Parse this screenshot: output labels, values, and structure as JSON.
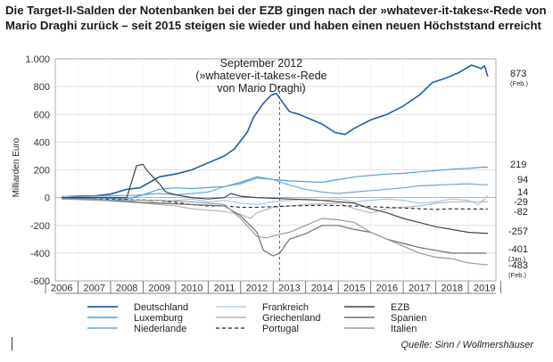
{
  "title": "Die Target-II-Salden der Notenbanken bei der EZB gingen nach der »whatever-it-takes«-Rede von Mario Draghi zurück – seit 2015 steigen sie wieder und haben einen neuen Höchststand erreicht",
  "source": "Quelle: Sinn / Wollmershäuser",
  "chart_data": {
    "type": "line",
    "ylabel": "Milliarden Euro",
    "ylim": [
      -600,
      1000
    ],
    "yticks": [
      -600,
      -400,
      -200,
      0,
      200,
      400,
      600,
      800,
      1000
    ],
    "ytick_labels": [
      "-600",
      "-400",
      "-200",
      "0",
      "200",
      "400",
      "600",
      "800",
      "1.000"
    ],
    "xlim": [
      2005.8,
      2019.35
    ],
    "year_labels": [
      "2006",
      "2007",
      "2008",
      "2009",
      "2010",
      "2011",
      "2012",
      "2013",
      "2014",
      "2015",
      "2016",
      "2017",
      "2018",
      "2019"
    ],
    "grid": true,
    "annotation": {
      "lines": [
        "September 2012",
        "(»whatever-it-takes«-Rede",
        "von Mario Draghi)"
      ],
      "x": 2012.7
    },
    "series": [
      {
        "name": "Deutschland",
        "color": "#1f5fa8",
        "width": 1.6,
        "dash": "",
        "end_label": "873",
        "end_sub": "(Feb.)",
        "points": [
          [
            2006,
            5
          ],
          [
            2006.5,
            10
          ],
          [
            2007,
            12
          ],
          [
            2007.5,
            25
          ],
          [
            2008,
            60
          ],
          [
            2008.4,
            70
          ],
          [
            2008.7,
            110
          ],
          [
            2009,
            150
          ],
          [
            2009.5,
            170
          ],
          [
            2010,
            200
          ],
          [
            2010.5,
            250
          ],
          [
            2011,
            300
          ],
          [
            2011.3,
            350
          ],
          [
            2011.7,
            470
          ],
          [
            2011.9,
            580
          ],
          [
            2012.2,
            680
          ],
          [
            2012.45,
            740
          ],
          [
            2012.6,
            750
          ],
          [
            2012.75,
            700
          ],
          [
            2013,
            620
          ],
          [
            2013.3,
            600
          ],
          [
            2013.7,
            560
          ],
          [
            2014,
            530
          ],
          [
            2014.4,
            470
          ],
          [
            2014.7,
            455
          ],
          [
            2015,
            500
          ],
          [
            2015.5,
            560
          ],
          [
            2016,
            600
          ],
          [
            2016.5,
            660
          ],
          [
            2017,
            740
          ],
          [
            2017.4,
            830
          ],
          [
            2017.8,
            860
          ],
          [
            2018.2,
            900
          ],
          [
            2018.6,
            955
          ],
          [
            2018.9,
            930
          ],
          [
            2019,
            950
          ],
          [
            2019.1,
            873
          ]
        ]
      },
      {
        "name": "Luxemburg",
        "color": "#4aa0dc",
        "width": 1.2,
        "dash": "",
        "end_label": "219",
        "end_sub": "",
        "points": [
          [
            2006,
            0
          ],
          [
            2007,
            0
          ],
          [
            2008,
            -10
          ],
          [
            2008.5,
            20
          ],
          [
            2009,
            60
          ],
          [
            2009.5,
            70
          ],
          [
            2010,
            65
          ],
          [
            2011,
            80
          ],
          [
            2011.5,
            110
          ],
          [
            2012,
            150
          ],
          [
            2012.5,
            130
          ],
          [
            2013,
            120
          ],
          [
            2013.5,
            115
          ],
          [
            2014,
            110
          ],
          [
            2014.5,
            130
          ],
          [
            2015,
            150
          ],
          [
            2015.5,
            160
          ],
          [
            2016,
            170
          ],
          [
            2016.5,
            175
          ],
          [
            2017,
            185
          ],
          [
            2017.5,
            195
          ],
          [
            2018,
            205
          ],
          [
            2018.5,
            210
          ],
          [
            2019,
            220
          ],
          [
            2019.1,
            219
          ]
        ]
      },
      {
        "name": "Niederlande",
        "color": "#6fa8d8",
        "width": 1.2,
        "dash": "",
        "end_label": "94",
        "end_sub": "",
        "points": [
          [
            2006,
            0
          ],
          [
            2007,
            10
          ],
          [
            2008,
            15
          ],
          [
            2008.5,
            20
          ],
          [
            2009,
            30
          ],
          [
            2009.5,
            20
          ],
          [
            2010,
            30
          ],
          [
            2010.5,
            40
          ],
          [
            2011,
            80
          ],
          [
            2011.5,
            100
          ],
          [
            2012,
            140
          ],
          [
            2012.5,
            130
          ],
          [
            2013,
            90
          ],
          [
            2013.5,
            60
          ],
          [
            2014,
            40
          ],
          [
            2014.5,
            30
          ],
          [
            2015,
            40
          ],
          [
            2015.5,
            50
          ],
          [
            2016,
            60
          ],
          [
            2016.5,
            70
          ],
          [
            2017,
            85
          ],
          [
            2017.5,
            90
          ],
          [
            2018,
            95
          ],
          [
            2018.5,
            100
          ],
          [
            2019,
            92
          ],
          [
            2019.1,
            94
          ]
        ]
      },
      {
        "name": "Frankreich",
        "color": "#9ec5e8",
        "width": 1.1,
        "dash": "",
        "end_label": "14",
        "end_sub": "",
        "points": [
          [
            2006,
            10
          ],
          [
            2006.5,
            0
          ],
          [
            2007,
            -10
          ],
          [
            2007.5,
            -20
          ],
          [
            2008,
            -30
          ],
          [
            2008.5,
            -15
          ],
          [
            2009,
            -40
          ],
          [
            2009.5,
            -20
          ],
          [
            2010,
            -10
          ],
          [
            2010.5,
            -30
          ],
          [
            2011,
            -20
          ],
          [
            2011.5,
            -40
          ],
          [
            2012,
            -50
          ],
          [
            2012.5,
            -30
          ],
          [
            2013,
            -20
          ],
          [
            2013.5,
            -10
          ],
          [
            2014,
            -20
          ],
          [
            2014.5,
            -10
          ],
          [
            2015,
            -30
          ],
          [
            2015.5,
            -20
          ],
          [
            2016,
            -10
          ],
          [
            2016.5,
            -20
          ],
          [
            2017,
            -40
          ],
          [
            2017.5,
            -30
          ],
          [
            2018,
            -10
          ],
          [
            2018.5,
            -20
          ],
          [
            2018.8,
            -50
          ],
          [
            2019,
            -10
          ],
          [
            2019.1,
            14
          ]
        ]
      },
      {
        "name": "Griechenland",
        "color": "#b8b8b8",
        "width": 1.2,
        "dash": "",
        "end_label": "-29",
        "end_sub": "",
        "points": [
          [
            2006,
            -10
          ],
          [
            2007,
            -20
          ],
          [
            2008,
            -30
          ],
          [
            2008.5,
            -40
          ],
          [
            2009,
            -50
          ],
          [
            2009.5,
            -60
          ],
          [
            2010,
            -80
          ],
          [
            2010.5,
            -90
          ],
          [
            2011,
            -100
          ],
          [
            2011.5,
            -120
          ],
          [
            2011.8,
            -150
          ],
          [
            2012,
            -110
          ],
          [
            2012.5,
            -70
          ],
          [
            2013,
            -60
          ],
          [
            2013.5,
            -50
          ],
          [
            2014,
            -45
          ],
          [
            2014.5,
            -40
          ],
          [
            2015,
            -80
          ],
          [
            2015.5,
            -110
          ],
          [
            2016,
            -80
          ],
          [
            2016.5,
            -70
          ],
          [
            2017,
            -60
          ],
          [
            2017.5,
            -40
          ],
          [
            2018,
            -30
          ],
          [
            2018.5,
            -30
          ],
          [
            2019,
            -29
          ],
          [
            2019.1,
            -29
          ]
        ]
      },
      {
        "name": "Portugal",
        "color": "#222222",
        "width": 1.1,
        "dash": "4,3",
        "end_label": "-82",
        "end_sub": "",
        "points": [
          [
            2006,
            -5
          ],
          [
            2007,
            -10
          ],
          [
            2008,
            -15
          ],
          [
            2009,
            -20
          ],
          [
            2010,
            -50
          ],
          [
            2010.5,
            -60
          ],
          [
            2011,
            -60
          ],
          [
            2011.5,
            -70
          ],
          [
            2012,
            -70
          ],
          [
            2013,
            -60
          ],
          [
            2014,
            -55
          ],
          [
            2015,
            -60
          ],
          [
            2016,
            -70
          ],
          [
            2017,
            -80
          ],
          [
            2017.5,
            -85
          ],
          [
            2018,
            -80
          ],
          [
            2018.5,
            -82
          ],
          [
            2019,
            -82
          ],
          [
            2019.1,
            -82
          ]
        ]
      },
      {
        "name": "EZB",
        "color": "#444444",
        "width": 1.2,
        "dash": "",
        "end_label": "-257",
        "end_sub": "",
        "points": [
          [
            2006,
            0
          ],
          [
            2007,
            0
          ],
          [
            2008,
            0
          ],
          [
            2008.3,
            230
          ],
          [
            2008.5,
            240
          ],
          [
            2008.6,
            200
          ],
          [
            2008.8,
            150
          ],
          [
            2009,
            100
          ],
          [
            2009.2,
            40
          ],
          [
            2009.5,
            20
          ],
          [
            2010,
            0
          ],
          [
            2010.5,
            -10
          ],
          [
            2011,
            0
          ],
          [
            2011.2,
            30
          ],
          [
            2011.5,
            10
          ],
          [
            2012,
            0
          ],
          [
            2013,
            -10
          ],
          [
            2014,
            -20
          ],
          [
            2015,
            -40
          ],
          [
            2015.5,
            -80
          ],
          [
            2016,
            -110
          ],
          [
            2016.5,
            -150
          ],
          [
            2017,
            -180
          ],
          [
            2017.5,
            -210
          ],
          [
            2018,
            -230
          ],
          [
            2018.5,
            -250
          ],
          [
            2019,
            -257
          ],
          [
            2019.1,
            -257
          ]
        ]
      },
      {
        "name": "Spanien",
        "color": "#6e6e6e",
        "width": 1.2,
        "dash": "",
        "end_label": "-401",
        "end_sub": "(Jan.)",
        "points": [
          [
            2006,
            -5
          ],
          [
            2007,
            -10
          ],
          [
            2008,
            -30
          ],
          [
            2009,
            -40
          ],
          [
            2010,
            -50
          ],
          [
            2011,
            -60
          ],
          [
            2011.5,
            -130
          ],
          [
            2012,
            -250
          ],
          [
            2012.2,
            -380
          ],
          [
            2012.5,
            -420
          ],
          [
            2012.7,
            -400
          ],
          [
            2013,
            -300
          ],
          [
            2013.5,
            -260
          ],
          [
            2014,
            -200
          ],
          [
            2014.5,
            -200
          ],
          [
            2015,
            -230
          ],
          [
            2015.5,
            -250
          ],
          [
            2016,
            -300
          ],
          [
            2016.5,
            -330
          ],
          [
            2017,
            -360
          ],
          [
            2017.5,
            -380
          ],
          [
            2018,
            -400
          ],
          [
            2018.5,
            -400
          ],
          [
            2019,
            -401
          ],
          [
            2019.05,
            -401
          ]
        ]
      },
      {
        "name": "Italien",
        "color": "#9a9a9a",
        "width": 1.2,
        "dash": "",
        "end_label": "-483",
        "end_sub": "(Feb.)",
        "points": [
          [
            2006,
            -10
          ],
          [
            2007,
            -15
          ],
          [
            2008,
            -20
          ],
          [
            2009,
            -20
          ],
          [
            2010,
            -30
          ],
          [
            2011,
            -50
          ],
          [
            2011.5,
            -150
          ],
          [
            2012,
            -280
          ],
          [
            2012.3,
            -290
          ],
          [
            2012.6,
            -270
          ],
          [
            2013,
            -250
          ],
          [
            2013.5,
            -200
          ],
          [
            2014,
            -150
          ],
          [
            2014.5,
            -160
          ],
          [
            2015,
            -180
          ],
          [
            2015.5,
            -250
          ],
          [
            2016,
            -300
          ],
          [
            2016.5,
            -350
          ],
          [
            2017,
            -400
          ],
          [
            2017.5,
            -430
          ],
          [
            2018,
            -440
          ],
          [
            2018.5,
            -470
          ],
          [
            2019,
            -483
          ],
          [
            2019.1,
            -483
          ]
        ]
      }
    ]
  }
}
